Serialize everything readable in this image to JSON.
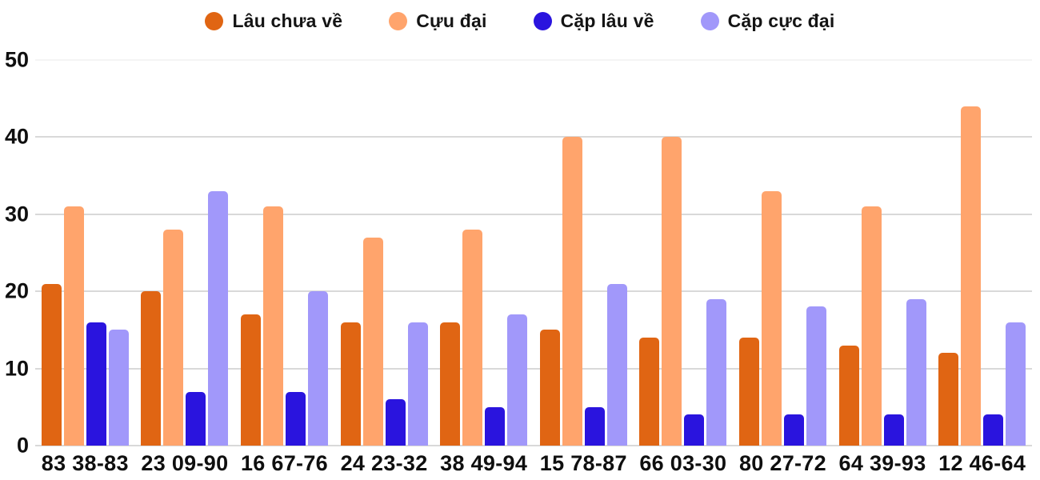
{
  "style": {
    "background": "#ffffff",
    "text_color": "#0f0f0f",
    "gridline_color": "#d9d9d9",
    "top_gridline_color": "#f4f4f4"
  },
  "chart_data": {
    "type": "bar",
    "title": "",
    "xlabel": "",
    "ylabel": "",
    "grid": true,
    "legend_position": "top",
    "ylim": [
      0,
      50
    ],
    "yticks": [
      0,
      10,
      20,
      30,
      40,
      50
    ],
    "categories": [
      "83 38-83",
      "23 09-90",
      "16 67-76",
      "24 23-32",
      "38 49-94",
      "15 78-87",
      "66 03-30",
      "80 27-72",
      "64 39-93",
      "12 46-64"
    ],
    "series": [
      {
        "name": "Lâu chưa về",
        "color": "#E06513",
        "values": [
          21,
          20,
          17,
          16,
          16,
          15,
          14,
          14,
          13,
          12
        ]
      },
      {
        "name": "Cựu đại",
        "color": "#FFA46C",
        "values": [
          31,
          28,
          31,
          27,
          28,
          40,
          40,
          33,
          31,
          44
        ]
      },
      {
        "name": "Cặp lâu về",
        "color": "#2A14DE",
        "values": [
          16,
          7,
          7,
          6,
          5,
          5,
          4,
          4,
          4,
          4
        ]
      },
      {
        "name": "Cặp cực đại",
        "color": "#A198FA",
        "values": [
          15,
          33,
          20,
          16,
          17,
          21,
          19,
          18,
          19,
          16
        ]
      }
    ]
  }
}
